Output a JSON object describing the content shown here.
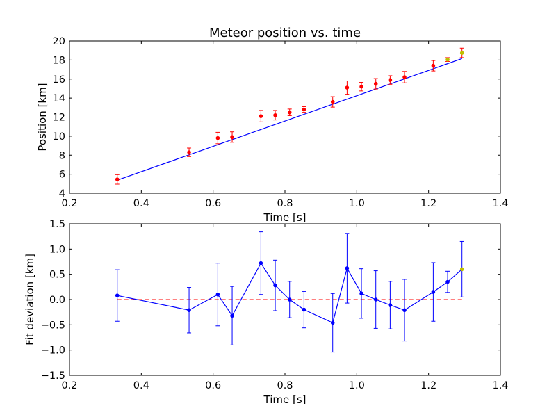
{
  "chart_data": [
    {
      "type": "scatter",
      "title": "Meteor position vs. time",
      "xlabel": "Time [s]",
      "ylabel": "Position [km]",
      "xlim": [
        0.2,
        1.4
      ],
      "ylim": [
        4,
        20
      ],
      "xticks": [
        "0.2",
        "0.4",
        "0.6",
        "0.8",
        "1.0",
        "1.2",
        "1.4"
      ],
      "yticks": [
        "4",
        "6",
        "8",
        "10",
        "12",
        "14",
        "16",
        "18",
        "20"
      ],
      "grid": false,
      "points": {
        "x": [
          0.333,
          0.533,
          0.613,
          0.653,
          0.733,
          0.773,
          0.813,
          0.853,
          0.933,
          0.973,
          1.013,
          1.053,
          1.093,
          1.133,
          1.213,
          1.253,
          1.293
        ],
        "y": [
          5.45,
          8.3,
          9.8,
          9.9,
          12.1,
          12.2,
          12.5,
          12.8,
          13.6,
          15.1,
          15.2,
          15.5,
          15.9,
          16.2,
          17.4,
          18.05,
          18.75
        ],
        "err": [
          0.5,
          0.45,
          0.6,
          0.55,
          0.6,
          0.5,
          0.35,
          0.3,
          0.55,
          0.7,
          0.45,
          0.55,
          0.45,
          0.6,
          0.55,
          0.2,
          0.5
        ],
        "color": "#ff0000",
        "ecolor": "#ff0000",
        "highlight_last": 2,
        "highlight_color": "#bfbf00"
      },
      "fit": {
        "x": [
          0.333,
          1.293
        ],
        "y": [
          5.37,
          18.15
        ],
        "color": "#0000ff"
      }
    },
    {
      "type": "line",
      "title": "",
      "xlabel": "Time [s]",
      "ylabel": "Fit deviation [km]",
      "xlim": [
        0.2,
        1.4
      ],
      "ylim": [
        -1.5,
        1.5
      ],
      "xticks": [
        "0.2",
        "0.4",
        "0.6",
        "0.8",
        "1.0",
        "1.2",
        "1.4"
      ],
      "yticks": [
        "−1.5",
        "−1.0",
        "−0.5",
        "0.0",
        "0.5",
        "1.0",
        "1.5"
      ],
      "grid": false,
      "series": {
        "x": [
          0.333,
          0.533,
          0.613,
          0.653,
          0.733,
          0.773,
          0.813,
          0.853,
          0.933,
          0.973,
          1.013,
          1.053,
          1.093,
          1.133,
          1.213,
          1.253,
          1.293
        ],
        "y": [
          0.08,
          -0.21,
          0.1,
          -0.32,
          0.72,
          0.28,
          0.0,
          -0.2,
          -0.46,
          0.62,
          0.12,
          0.0,
          -0.11,
          -0.21,
          0.15,
          0.35,
          0.6
        ],
        "err": [
          0.51,
          0.45,
          0.62,
          0.58,
          0.62,
          0.5,
          0.36,
          0.36,
          0.58,
          0.69,
          0.49,
          0.57,
          0.47,
          0.61,
          0.58,
          0.21,
          0.55
        ],
        "color": "#0000ff",
        "highlight_last": 1,
        "highlight_color": "#bfbf00"
      },
      "zero_line": {
        "y": 0.0,
        "x": [
          0.333,
          1.293
        ],
        "style": "dashed",
        "color": "#ff0000"
      }
    }
  ]
}
